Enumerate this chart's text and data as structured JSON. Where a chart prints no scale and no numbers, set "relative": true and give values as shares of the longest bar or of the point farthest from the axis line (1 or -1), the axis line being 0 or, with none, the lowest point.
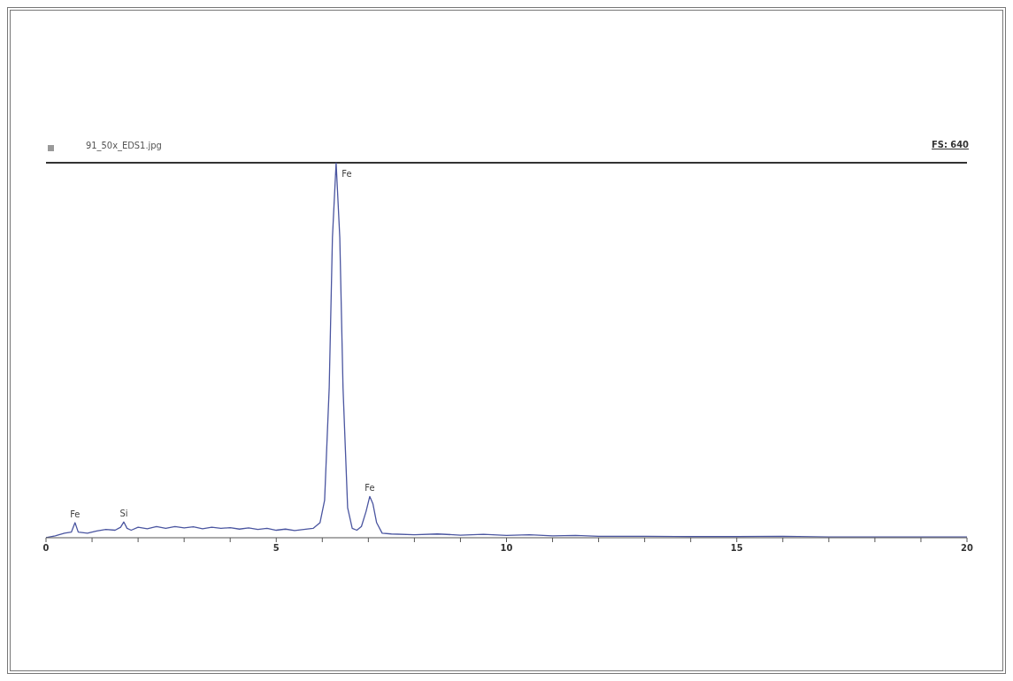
{
  "chart_data": {
    "type": "line",
    "title": "91_50x_EDS1.jpg",
    "relative": true,
    "tick_labels": "x",
    "grid": false,
    "marker": "none",
    "line_style": "solid",
    "xlim": [
      0,
      20
    ],
    "xticks": [
      0,
      {
        "value": 1,
        "label": null
      },
      {
        "value": 2,
        "label": null
      },
      {
        "value": 3,
        "label": null
      },
      {
        "value": 4,
        "label": null
      },
      5,
      {
        "value": 6,
        "label": null
      },
      {
        "value": 7,
        "label": null
      },
      {
        "value": 8,
        "label": null
      },
      {
        "value": 9,
        "label": null
      },
      10,
      {
        "value": 11,
        "label": null
      },
      {
        "value": 12,
        "label": null
      },
      {
        "value": 13,
        "label": null
      },
      {
        "value": 14,
        "label": null
      },
      15,
      {
        "value": 16,
        "label": null
      },
      {
        "value": 17,
        "label": null
      },
      {
        "value": 18,
        "label": null
      },
      {
        "value": 19,
        "label": null
      },
      20
    ],
    "ref_lines": [
      {
        "axis": "y",
        "value": 1,
        "color": "#333333"
      }
    ],
    "annotations": [
      "FS: 640",
      {
        "text": "Fe",
        "x": 0.63,
        "y": 0.04
      },
      {
        "text": "Si",
        "x": 1.69,
        "y": 0.042
      },
      {
        "text": "Fe",
        "x": 6.3,
        "y": 1
      },
      {
        "text": "Fe",
        "x": 7.03,
        "y": 0.11
      }
    ],
    "series": [
      {
        "color": "#4a55a0",
        "x": [
          0,
          0.2,
          0.4,
          0.55,
          0.63,
          0.7,
          0.9,
          1.1,
          1.3,
          1.5,
          1.62,
          1.69,
          1.76,
          1.85,
          2.0,
          2.2,
          2.4,
          2.6,
          2.8,
          3.0,
          3.2,
          3.4,
          3.6,
          3.8,
          4.0,
          4.2,
          4.4,
          4.6,
          4.8,
          5.0,
          5.2,
          5.4,
          5.6,
          5.8,
          5.95,
          6.05,
          6.15,
          6.22,
          6.3,
          6.38,
          6.45,
          6.55,
          6.65,
          6.75,
          6.85,
          6.95,
          7.03,
          7.1,
          7.18,
          7.3,
          7.5,
          8,
          8.5,
          9,
          9.5,
          10,
          10.5,
          11,
          11.5,
          12,
          13,
          14,
          15,
          16,
          17,
          18,
          19,
          20
        ],
        "values": [
          0,
          0.005,
          0.012,
          0.015,
          0.04,
          0.015,
          0.012,
          0.018,
          0.022,
          0.02,
          0.028,
          0.042,
          0.025,
          0.02,
          0.028,
          0.024,
          0.03,
          0.025,
          0.03,
          0.026,
          0.029,
          0.024,
          0.028,
          0.025,
          0.027,
          0.023,
          0.026,
          0.022,
          0.025,
          0.02,
          0.023,
          0.019,
          0.022,
          0.025,
          0.04,
          0.1,
          0.4,
          0.8,
          1,
          0.8,
          0.4,
          0.08,
          0.025,
          0.02,
          0.03,
          0.07,
          0.11,
          0.09,
          0.04,
          0.012,
          0.01,
          0.008,
          0.01,
          0.007,
          0.009,
          0.006,
          0.008,
          0.005,
          0.006,
          0.004,
          0.004,
          0.003,
          0.003,
          0.004,
          0.002,
          0.002,
          0.002,
          0.002
        ]
      }
    ]
  }
}
